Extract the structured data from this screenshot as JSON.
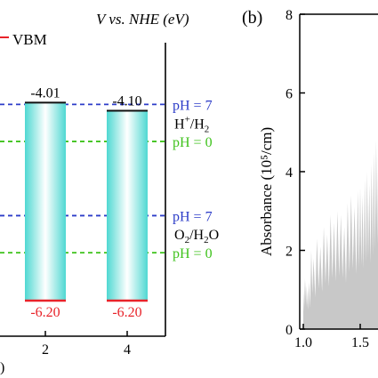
{
  "chart_data": [
    {
      "type": "bar",
      "panel_label": "",
      "header": "V vs. NHE (eV)",
      "legend": [
        {
          "label": "VBM",
          "color": "#e8232a"
        }
      ],
      "categories": [
        "2",
        "4"
      ],
      "cbm_labels": [
        "-4.01",
        "-4.10"
      ],
      "vbm_labels": [
        "-6.20",
        "-6.20"
      ],
      "cbm": [
        -4.01,
        -4.1
      ],
      "vbm": [
        -6.2,
        -6.2
      ],
      "xlabel": ")",
      "reference_lines": [
        {
          "label": "pH = 7",
          "value": -4.03,
          "color": "#2c3cc8"
        },
        {
          "label": "pH = 0",
          "value": -4.44,
          "color": "#3ec21b"
        },
        {
          "label": "pH = 7",
          "value": -5.26,
          "color": "#2c3cc8"
        },
        {
          "label": "pH = 0",
          "value": -5.67,
          "color": "#3ec21b"
        }
      ],
      "couples": [
        {
          "base": "H",
          "sup": "+",
          "rest": "/H",
          "sub": "2",
          "value": -4.24
        },
        {
          "base": "O",
          "sub": "2",
          "rest": "/H",
          "sub2": "2",
          "tail": "O",
          "value": -5.46
        }
      ],
      "colors": {
        "bar_edge": "#4fd8d2",
        "bar_center": "#ffffff",
        "cbm_line": "#111111",
        "vbm_line": "#e8232a"
      }
    },
    {
      "type": "area",
      "panel_label": "(b)",
      "ylabel": "Absorbance (10⁵/cm)",
      "yticks": [
        "0",
        "2",
        "4",
        "6",
        "8"
      ],
      "xticks": [
        "1.0",
        "1.5"
      ],
      "ylim": [
        0,
        8
      ],
      "xlim": [
        1.0,
        1.75
      ],
      "x": [
        1.0,
        1.01,
        1.02,
        1.03,
        1.05,
        1.07,
        1.09,
        1.12,
        1.15,
        1.18,
        1.21,
        1.24,
        1.27,
        1.3,
        1.33,
        1.36,
        1.39,
        1.42,
        1.45,
        1.48,
        1.5,
        1.52,
        1.54,
        1.56,
        1.58,
        1.6,
        1.62,
        1.64,
        1.66,
        1.68,
        1.7,
        1.72,
        1.74,
        1.75
      ],
      "y": [
        1.0,
        1.3,
        1.25,
        1.1,
        1.2,
        2.0,
        1.8,
        2.3,
        2.1,
        2.6,
        2.4,
        2.9,
        2.7,
        3.0,
        2.9,
        2.6,
        3.2,
        3.4,
        3.1,
        3.5,
        3.6,
        3.4,
        3.8,
        4.0,
        3.7,
        4.2,
        4.5,
        4.8,
        5.2,
        5.0,
        5.8,
        6.2,
        6.8,
        7.2
      ],
      "fill_color": "#c8c8c8"
    }
  ]
}
